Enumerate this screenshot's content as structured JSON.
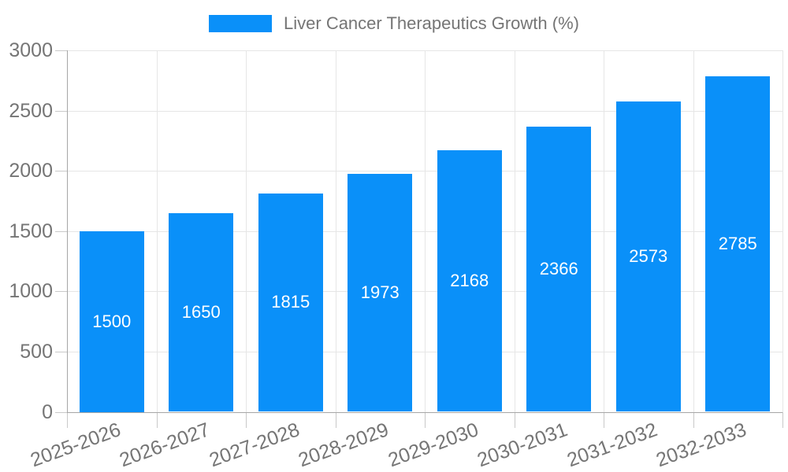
{
  "legend": {
    "label": "Liver Cancer Therapeutics Growth (%)"
  },
  "chart_data": {
    "type": "bar",
    "title": "",
    "legend_label": "Liver Cancer Therapeutics Growth (%)",
    "legend_position": "top-center",
    "categories": [
      "2025-2026",
      "2026-2027",
      "2027-2028",
      "2028-2029",
      "2029-2030",
      "2030-2031",
      "2031-2032",
      "2032-2033"
    ],
    "values": [
      1500,
      1650,
      1815,
      1973,
      2168,
      2366,
      2573,
      2785
    ],
    "value_labels_position": "inside-center",
    "xlabel": "",
    "ylabel": "",
    "ylim": [
      0,
      3000
    ],
    "yticks": [
      0,
      500,
      1000,
      1500,
      2000,
      2500,
      3000
    ],
    "x_label_rotation_deg": -20,
    "grid": true,
    "colors": {
      "bar": "#0a90f9",
      "value_label": "#ffffff",
      "axis": "#a6a6a6",
      "grid": "#e6e6e6",
      "tick": "#c9c9c9",
      "text": "#757575"
    }
  }
}
